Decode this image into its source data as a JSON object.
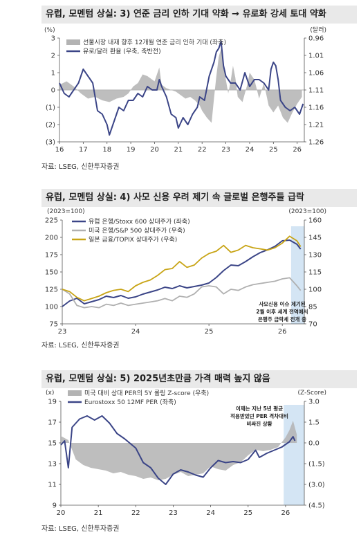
{
  "panels": [
    {
      "title": "유럽, 모멘텀 상실: 3) 연준 금리 인하 기대 약화 → 유로화 강세 토대 약화",
      "source": "자료: LSEG, 신한투자증권",
      "chart_data": {
        "type": "area+line",
        "left_unit": "(%)",
        "right_unit": "(달러)",
        "x_ticks": [
          "16",
          "17",
          "18",
          "19",
          "20",
          "21",
          "22",
          "23",
          "24",
          "25",
          "26"
        ],
        "y_left_ticks": [
          "3",
          "2",
          "1",
          "0",
          "(1)",
          "(2)",
          "(3)"
        ],
        "y_left_values": [
          3,
          2,
          1,
          0,
          -1,
          -2,
          -3
        ],
        "y_left_range": [
          -3,
          3
        ],
        "y_right_ticks": [
          "0.96",
          "1.01",
          "1.06",
          "1.11",
          "1.16",
          "1.21",
          "1.26"
        ],
        "y_right_range": [
          0.96,
          1.26
        ],
        "y_right_inverted": true,
        "x_range": [
          2016,
          2026.3
        ],
        "series": [
          {
            "name": "선물시장 내재 향후 12개월 연준 금리 인하 기대 (좌축)",
            "color": "#b3b3b3",
            "kind": "area",
            "axis": "left",
            "x": [
              2016.0,
              2016.3,
              2016.6,
              2016.9,
              2017.2,
              2017.5,
              2017.8,
              2018.1,
              2018.4,
              2018.7,
              2018.9,
              2019.1,
              2019.3,
              2019.5,
              2019.7,
              2019.9,
              2020.0,
              2020.1,
              2020.2,
              2020.3,
              2020.5,
              2020.7,
              2020.9,
              2021.1,
              2021.3,
              2021.5,
              2021.7,
              2021.9,
              2022.0,
              2022.2,
              2022.4,
              2022.5,
              2022.6,
              2022.7,
              2022.8,
              2022.9,
              2023.0,
              2023.1,
              2023.2,
              2023.3,
              2023.4,
              2023.5,
              2023.7,
              2023.9,
              2024.0,
              2024.2,
              2024.4,
              2024.6,
              2024.8,
              2025.0,
              2025.2,
              2025.4,
              2025.6,
              2025.8,
              2026.0,
              2026.2
            ],
            "values": [
              0.3,
              0.5,
              0.2,
              -0.2,
              -0.5,
              -0.4,
              -0.6,
              -0.7,
              -0.5,
              -0.4,
              -0.2,
              0.2,
              0.4,
              0.9,
              0.8,
              0.6,
              0.5,
              0.9,
              1.3,
              0.3,
              0.1,
              0.0,
              -0.1,
              -0.3,
              -0.5,
              -0.4,
              -0.6,
              -0.9,
              -1.2,
              -1.6,
              -1.9,
              -0.5,
              0.8,
              1.9,
              2.4,
              1.4,
              0.6,
              -0.2,
              0.5,
              1.4,
              0.7,
              -0.4,
              -0.7,
              0.3,
              1.0,
              0.6,
              -0.5,
              0.4,
              -0.9,
              -1.3,
              -0.9,
              -1.6,
              -1.9,
              -1.3,
              -0.8,
              -0.4
            ]
          },
          {
            "name": "유로/달러 환율 (우축, 축반전)",
            "color": "#3b4587",
            "kind": "line",
            "axis": "right",
            "x": [
              2016.0,
              2016.2,
              2016.4,
              2016.6,
              2016.8,
              2017.0,
              2017.2,
              2017.4,
              2017.6,
              2017.8,
              2018.0,
              2018.1,
              2018.3,
              2018.5,
              2018.7,
              2018.9,
              2019.1,
              2019.3,
              2019.5,
              2019.7,
              2019.9,
              2020.1,
              2020.2,
              2020.3,
              2020.5,
              2020.7,
              2020.9,
              2021.0,
              2021.2,
              2021.4,
              2021.6,
              2021.8,
              2021.9,
              2022.1,
              2022.3,
              2022.4,
              2022.5,
              2022.6,
              2022.7,
              2022.8,
              2022.9,
              2023.0,
              2023.2,
              2023.4,
              2023.6,
              2023.8,
              2024.0,
              2024.2,
              2024.4,
              2024.6,
              2024.8,
              2024.9,
              2025.0,
              2025.1,
              2025.2,
              2025.3,
              2025.5,
              2025.7,
              2025.9,
              2026.1,
              2026.25
            ],
            "values": [
              1.09,
              1.12,
              1.13,
              1.11,
              1.09,
              1.05,
              1.07,
              1.09,
              1.17,
              1.18,
              1.21,
              1.24,
              1.2,
              1.16,
              1.17,
              1.14,
              1.14,
              1.12,
              1.13,
              1.1,
              1.11,
              1.11,
              1.08,
              1.1,
              1.13,
              1.18,
              1.19,
              1.22,
              1.19,
              1.21,
              1.18,
              1.16,
              1.13,
              1.14,
              1.07,
              1.05,
              1.03,
              1.0,
              0.99,
              0.97,
              1.04,
              1.07,
              1.09,
              1.09,
              1.11,
              1.06,
              1.1,
              1.08,
              1.08,
              1.09,
              1.11,
              1.05,
              1.03,
              1.04,
              1.08,
              1.14,
              1.16,
              1.17,
              1.16,
              1.18,
              1.15
            ]
          }
        ]
      }
    },
    {
      "title": "유럽, 모멘텀 상실: 4) 사모 신용 우려 제기 속 글로벌 은행주들 급락",
      "source": "자료: LSEG, 신한투자증권",
      "chart_data": {
        "type": "line",
        "left_unit": "(2023=100)",
        "right_unit": "(2023=100)",
        "x_ticks": [
          "23",
          "24",
          "25",
          "26"
        ],
        "x_range": [
          2023.0,
          2026.3
        ],
        "y_left_ticks": [
          "225",
          "200",
          "175",
          "150",
          "125",
          "100",
          "75"
        ],
        "y_left_range": [
          75,
          225
        ],
        "y_right_ticks": [
          "160",
          "145",
          "130",
          "115",
          "100",
          "85",
          "70"
        ],
        "y_right_range": [
          70,
          160
        ],
        "highlight_x": [
          2026.12,
          2026.3
        ],
        "annotation": [
          "사모신용 이슈 제기된",
          "2월 이후 세계 전역에서",
          "은행주 급락세 전개 중"
        ],
        "series": [
          {
            "name": "유럽 은행/Stoxx 600 상대주가 (좌축)",
            "color": "#3b4587",
            "axis": "left",
            "x": [
              2023.0,
              2023.1,
              2023.2,
              2023.3,
              2023.4,
              2023.5,
              2023.6,
              2023.7,
              2023.8,
              2023.9,
              2024.0,
              2024.1,
              2024.2,
              2024.3,
              2024.4,
              2024.5,
              2024.6,
              2024.7,
              2024.8,
              2024.9,
              2025.0,
              2025.1,
              2025.2,
              2025.3,
              2025.4,
              2025.5,
              2025.6,
              2025.7,
              2025.8,
              2025.9,
              2026.0,
              2026.1,
              2026.2,
              2026.25
            ],
            "values": [
              100,
              108,
              112,
              104,
              107,
              110,
              115,
              113,
              116,
              112,
              114,
              118,
              121,
              124,
              128,
              126,
              130,
              127,
              129,
              131,
              134,
              142,
              152,
              160,
              159,
              165,
              172,
              178,
              182,
              187,
              195,
              196,
              190,
              183
            ]
          },
          {
            "name": "미국 은행/S&P 500 상대주가 (우축)",
            "color": "#b0b0b0",
            "axis": "right",
            "x": [
              2023.0,
              2023.1,
              2023.2,
              2023.3,
              2023.4,
              2023.5,
              2023.6,
              2023.7,
              2023.8,
              2023.9,
              2024.0,
              2024.1,
              2024.2,
              2024.3,
              2024.4,
              2024.5,
              2024.6,
              2024.7,
              2024.8,
              2024.9,
              2025.0,
              2025.1,
              2025.2,
              2025.3,
              2025.4,
              2025.5,
              2025.6,
              2025.7,
              2025.8,
              2025.9,
              2026.0,
              2026.1,
              2026.2,
              2026.25
            ],
            "values": [
              100,
              96,
              86,
              84,
              85,
              84,
              87,
              86,
              88,
              86,
              87,
              88,
              89,
              90,
              92,
              90,
              94,
              93,
              96,
              102,
              103,
              102,
              96,
              100,
              99,
              102,
              104,
              105,
              106,
              107,
              109,
              110,
              103,
              99
            ]
          },
          {
            "name": "일본 금융/TOPIX 상대주가 (우축)",
            "color": "#c8a415",
            "axis": "right",
            "x": [
              2023.0,
              2023.1,
              2023.2,
              2023.3,
              2023.4,
              2023.5,
              2023.6,
              2023.7,
              2023.8,
              2023.9,
              2024.0,
              2024.1,
              2024.2,
              2024.3,
              2024.4,
              2024.5,
              2024.6,
              2024.7,
              2024.8,
              2024.9,
              2025.0,
              2025.1,
              2025.2,
              2025.3,
              2025.4,
              2025.5,
              2025.6,
              2025.7,
              2025.8,
              2025.9,
              2026.0,
              2026.1,
              2026.2,
              2026.25
            ],
            "values": [
              100,
              98,
              93,
              90,
              92,
              94,
              97,
              99,
              100,
              98,
              103,
              106,
              108,
              112,
              117,
              118,
              124,
              119,
              121,
              127,
              131,
              133,
              138,
              132,
              134,
              138,
              136,
              135,
              134,
              136,
              140,
              146,
              142,
              137
            ]
          }
        ]
      }
    },
    {
      "title": "유럽, 모멘텀 상실: 5) 2025년초만큼 가격 매력 높지 않음",
      "source": "자료: LSEG, 신한투자증권",
      "chart_data": {
        "type": "area+line",
        "left_unit": "(x)",
        "right_unit": "(Z-Score)",
        "x_ticks": [
          "20",
          "21",
          "22",
          "23",
          "24",
          "25",
          "26"
        ],
        "x_range": [
          2020.0,
          2026.5
        ],
        "y_left_ticks": [
          "19",
          "17",
          "15",
          "13",
          "11",
          "9"
        ],
        "y_left_range": [
          9,
          19
        ],
        "y_right_ticks": [
          "3.0",
          "1.5",
          "0.0",
          "(1.5)",
          "(3.0)",
          "(4.5)"
        ],
        "y_right_range": [
          -4.5,
          3.0
        ],
        "highlight_x": [
          2025.95,
          2026.5
        ],
        "annotation": [
          "이제는 지난 5년 평균",
          "적용받았던 PER 격차대비",
          "비싸진 상황"
        ],
        "series": [
          {
            "name": "미국 대비 상대 PER의 5Y 롤링 Z-score (우축)",
            "color": "#b3b3b3",
            "kind": "area",
            "axis": "right",
            "x": [
              2020.0,
              2020.2,
              2020.4,
              2020.6,
              2020.8,
              2021.0,
              2021.2,
              2021.4,
              2021.6,
              2021.8,
              2022.0,
              2022.2,
              2022.4,
              2022.6,
              2022.8,
              2023.0,
              2023.2,
              2023.4,
              2023.6,
              2023.8,
              2024.0,
              2024.2,
              2024.4,
              2024.6,
              2024.8,
              2025.0,
              2025.2,
              2025.4,
              2025.6,
              2025.8,
              2026.0,
              2026.1,
              2026.2,
              2026.3
            ],
            "values": [
              0.5,
              0.2,
              -1.2,
              -1.6,
              -1.8,
              -1.9,
              -2.0,
              -2.2,
              -2.1,
              -2.3,
              -2.4,
              -2.6,
              -2.5,
              -2.7,
              -2.6,
              -2.3,
              -2.1,
              -2.4,
              -2.3,
              -2.2,
              -1.7,
              -1.9,
              -2.0,
              -1.6,
              -1.4,
              -0.9,
              -0.5,
              -0.6,
              -0.5,
              -0.3,
              0.4,
              0.9,
              1.6,
              0.6
            ]
          },
          {
            "name": "Eurostoxx 50 12MF PER (좌축)",
            "color": "#3b4587",
            "kind": "line",
            "axis": "left",
            "x": [
              2020.0,
              2020.1,
              2020.2,
              2020.3,
              2020.5,
              2020.7,
              2020.9,
              2021.1,
              2021.3,
              2021.5,
              2021.7,
              2021.9,
              2022.0,
              2022.2,
              2022.4,
              2022.6,
              2022.8,
              2023.0,
              2023.2,
              2023.4,
              2023.6,
              2023.8,
              2024.0,
              2024.2,
              2024.4,
              2024.6,
              2024.8,
              2025.0,
              2025.2,
              2025.3,
              2025.5,
              2025.7,
              2025.9,
              2026.1,
              2026.2,
              2026.25
            ],
            "values": [
              14.8,
              15.2,
              12.6,
              16.5,
              17.3,
              17.6,
              17.2,
              17.6,
              16.9,
              15.9,
              15.4,
              14.8,
              14.5,
              13.1,
              12.6,
              11.6,
              11.0,
              12.0,
              12.4,
              12.2,
              11.9,
              11.7,
              12.6,
              13.3,
              13.1,
              13.2,
              13.1,
              13.4,
              14.3,
              13.6,
              14.0,
              14.3,
              14.6,
              15.1,
              15.6,
              15.2
            ]
          }
        ]
      }
    }
  ]
}
